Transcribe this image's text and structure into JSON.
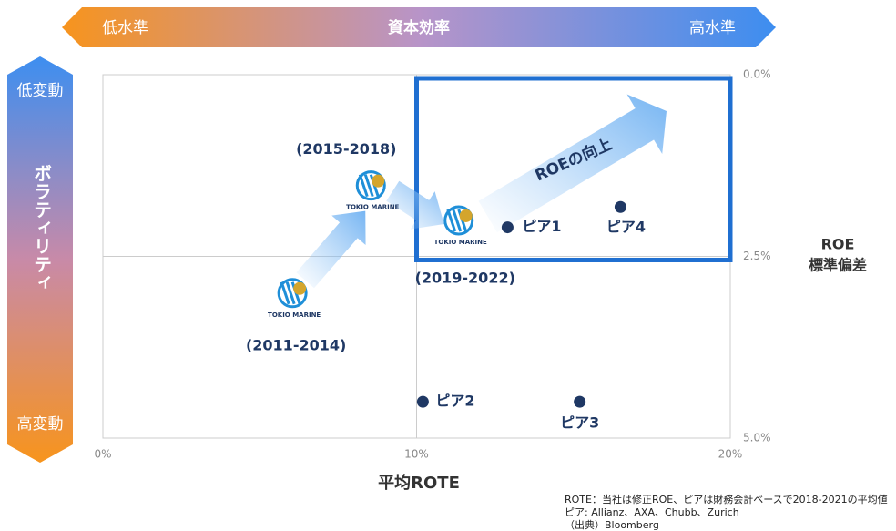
{
  "chart_data": {
    "type": "scatter",
    "top_arrow": {
      "left": "低水準",
      "center": "資本効率",
      "right": "高水準"
    },
    "side_arrow": {
      "top": "低変動",
      "center": "ボラティリティ",
      "bottom": "高変動"
    },
    "x_label": "平均ROTE",
    "y_label": [
      "ROE",
      "標準偏差"
    ],
    "annotation": "ROEの向上",
    "xlim": [
      0,
      20
    ],
    "xticks": [
      {
        "value": 0,
        "label": "0%"
      },
      {
        "value": 10,
        "label": "10%"
      },
      {
        "value": 20,
        "label": "20%"
      }
    ],
    "ylim": [
      0,
      5
    ],
    "yticks": [
      {
        "value": 0,
        "label": "0.0%"
      },
      {
        "value": 2.5,
        "label": "2.5%"
      },
      {
        "value": 5,
        "label": "5.0%"
      }
    ],
    "y_reversed": true,
    "grid": true,
    "highlight": {
      "xlim": [
        10,
        20
      ],
      "ylim": [
        0.05,
        2.55
      ],
      "color": "#1f6fd1"
    },
    "series": [
      {
        "name": "TOKIO MARINE",
        "color": "#1f8fd8",
        "labels": [
          "(2011-2014)",
          "(2015-2018)",
          "(2019-2022)"
        ],
        "x": [
          6.1,
          8.6,
          11.4
        ],
        "values": [
          3.08,
          1.6,
          2.08
        ]
      },
      {
        "color": "#1f3864",
        "labels": [
          "ピア1",
          "ピア4",
          "ピア2",
          "ピア3"
        ],
        "x": [
          12.9,
          16.5,
          10.2,
          15.2
        ],
        "values": [
          2.1,
          1.82,
          4.5,
          4.5
        ]
      }
    ],
    "notes": [
      "ROTE：当社は修正ROE、ピアは財務会計ベースで2018-2021の平均値",
      "ピア: Allianz、AXA、Chubb、Zurich",
      "（出典）Bloomberg"
    ]
  }
}
